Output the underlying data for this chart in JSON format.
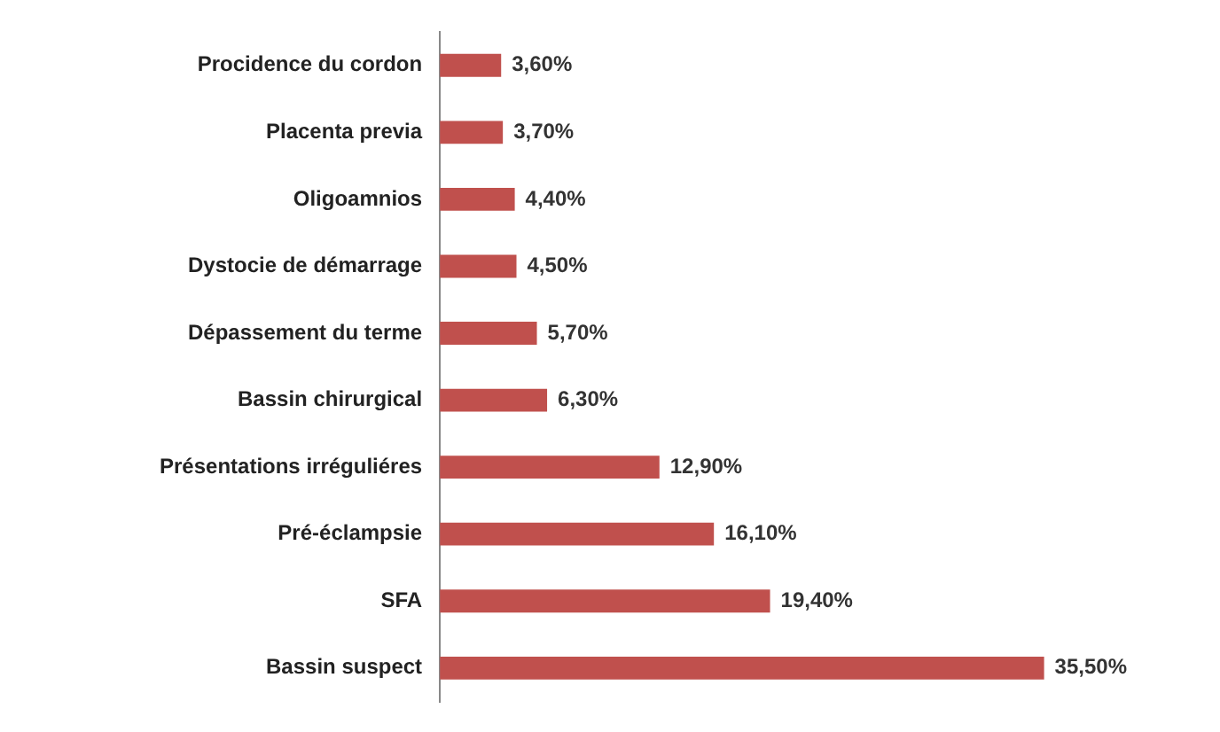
{
  "chart_data": {
    "type": "bar",
    "orientation": "horizontal",
    "categories": [
      "Procidence du cordon",
      "Placenta previa",
      "Oligoamnios",
      "Dystocie de démarrage",
      "Dépassement du terme",
      "Bassin chirurgical",
      "Présentations irréguliéres",
      "Pré-éclampsie",
      "SFA",
      "Bassin suspect"
    ],
    "values": [
      3.6,
      3.7,
      4.4,
      4.5,
      5.7,
      6.3,
      12.9,
      16.1,
      19.4,
      35.5
    ],
    "value_labels": [
      "3,60%",
      "3,70%",
      "4,40%",
      "4,50%",
      "5,70%",
      "6,30%",
      "12,90%",
      "16,10%",
      "19,40%",
      "35,50%"
    ],
    "color": "#c0504d"
  }
}
